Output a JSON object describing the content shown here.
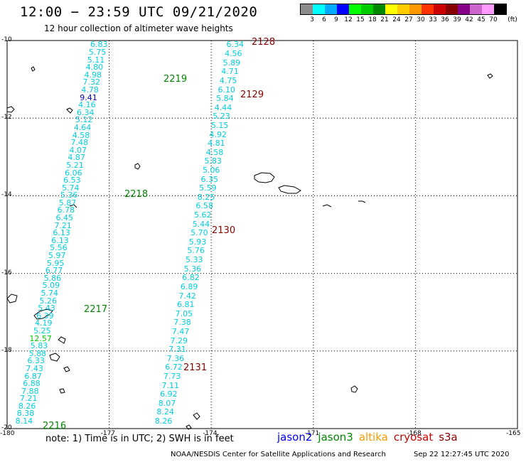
{
  "title": "12:00 − 23:59 UTC 09/21/2020",
  "subtitle": "12 hour collection of altimeter wave heights",
  "colorbar": {
    "unit": "(ft)",
    "ticks": [
      "3",
      "6",
      "9",
      "12",
      "15",
      "18",
      "21",
      "24",
      "27",
      "30",
      "33",
      "36",
      "39",
      "42",
      "45",
      "70"
    ],
    "colors": [
      "#8c8c8c",
      "#00ffff",
      "#00aaff",
      "#0000ff",
      "#00ff00",
      "#00cc00",
      "#008800",
      "#ffff00",
      "#ffcc00",
      "#ff9900",
      "#ff3300",
      "#cc0000",
      "#880000",
      "#880088",
      "#cc66cc",
      "#ff99ff",
      "#000000"
    ]
  },
  "chart_data": {
    "type": "map",
    "region": {
      "lon_range": [
        -180,
        -165
      ],
      "lat_range": [
        -20,
        -10
      ]
    },
    "lat_ticks": [
      "-10",
      "-12",
      "-14",
      "-16",
      "-18",
      "-20"
    ],
    "lon_ticks": [
      "-180",
      "-177",
      "-174",
      "-171",
      "-168",
      "-165"
    ],
    "tracks": [
      {
        "pass": "2216_2219",
        "color": "#00d0e0",
        "start": [
          -177.3,
          -10.1
        ],
        "end": [
          -179.5,
          -19.8
        ],
        "values": [
          "6.83",
          "5.75",
          "5.11",
          "4.80",
          "4.98",
          "7.32",
          "4.78",
          "9.41",
          "4.16",
          "6.34",
          "5.12",
          "4.64",
          "4.58",
          "7.48",
          "4.07",
          "4.87",
          "5.21",
          "6.06",
          "6.53",
          "5.74",
          "5.36",
          "5.87",
          "6.78",
          "6.45",
          "7.21",
          "6.13",
          "6.13",
          "5.56",
          "5.97",
          "5.95",
          "6.77",
          "5.86",
          "5.09",
          "5.74",
          "5.26",
          "5.43",
          "6.39",
          "4.19",
          "5.25",
          "12.57",
          "5.83",
          "5.88",
          "6.33",
          "7.43",
          "6.87",
          "6.88",
          "7.88",
          "7.21",
          "8.26",
          "8.38",
          "8.14"
        ]
      },
      {
        "pass": "2128_2131",
        "color": "#00d0e0",
        "start": [
          -173.3,
          -10.1
        ],
        "end": [
          -175.4,
          -19.8
        ],
        "values": [
          "6.34",
          "4.56",
          "5.89",
          "4.71",
          "4.75",
          "6.10",
          "5.84",
          "4.44",
          "5.23",
          "5.15",
          "4.92",
          "4.81",
          "4.58",
          "5.83",
          "5.06",
          "6.35",
          "5.59",
          "8.25",
          "6.58",
          "5.62",
          "5.44",
          "5.70",
          "5.93",
          "5.76",
          "5.33",
          "5.36",
          "6.82",
          "6.89",
          "7.42",
          "6.81",
          "7.05",
          "7.38",
          "7.47",
          "7.29",
          "7.31",
          "7.36",
          "6.72",
          "7.73",
          "7.11",
          "6.92",
          "8.07",
          "8.24",
          "8.26"
        ]
      }
    ],
    "pass_labels": [
      {
        "text": "2219",
        "color": "#008800"
      },
      {
        "text": "2218",
        "color": "#008800"
      },
      {
        "text": "2217",
        "color": "#008800"
      },
      {
        "text": "2216",
        "color": "#008800"
      },
      {
        "text": "2128",
        "color": "#880000"
      },
      {
        "text": "2129",
        "color": "#880000"
      },
      {
        "text": "2130",
        "color": "#880000"
      },
      {
        "text": "2131",
        "color": "#880000"
      }
    ]
  },
  "note": "note:  1) Time is in UTC;  2) SWH is in feet",
  "satellites": [
    {
      "name": "jason2",
      "color": "#0000ff"
    },
    {
      "name": "jason3",
      "color": "#008800"
    },
    {
      "name": "altika",
      "color": "#ff9900"
    },
    {
      "name": "cryosat",
      "color": "#cc0000"
    },
    {
      "name": "s3a",
      "color": "#880000"
    }
  ],
  "credit": "NOAA/NESDIS Center for Satellite Applications and Research",
  "credit_time": "Sep 22 12:27:45 UTC 2020"
}
